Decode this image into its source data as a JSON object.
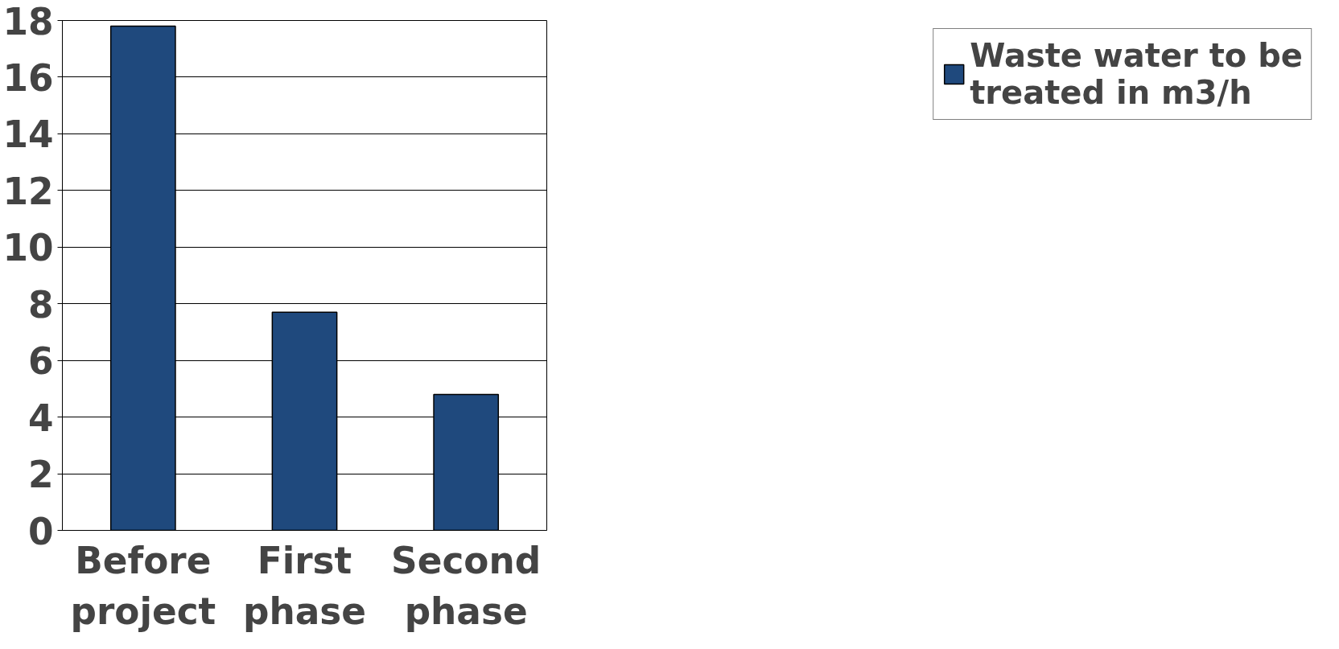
{
  "chart_data": {
    "type": "bar",
    "categories": [
      "Before project",
      "First phase",
      "Second phase"
    ],
    "series": [
      {
        "name": "Waste water to be treated in m3/h",
        "color": "#1f497d",
        "values": [
          17.8,
          7.7,
          4.8
        ]
      }
    ],
    "ylim": [
      0,
      18
    ],
    "yticks": [
      0,
      2,
      4,
      6,
      8,
      10,
      12,
      14,
      16,
      18
    ],
    "grid": "y",
    "legend": "right"
  }
}
